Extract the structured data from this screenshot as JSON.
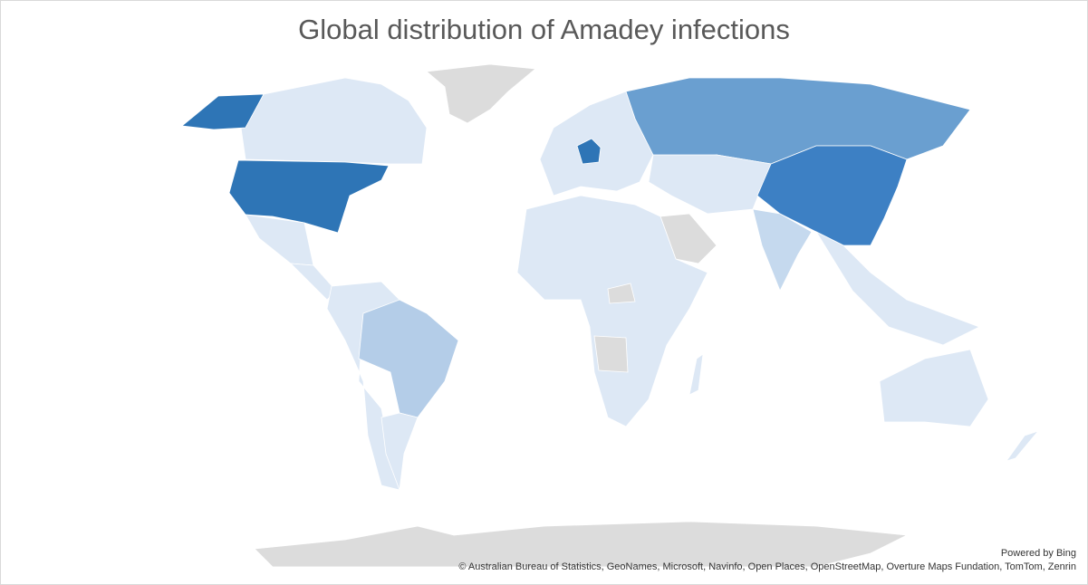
{
  "title": "Global distribution of Amadey infections",
  "attribution": {
    "powered_by": "Powered by Bing",
    "sources": "© Australian Bureau of Statistics, GeoNames, Microsoft, Navinfo, Open Places, OpenStreetMap, Overture Maps Fundation, TomTom, Zenrin"
  }
}
